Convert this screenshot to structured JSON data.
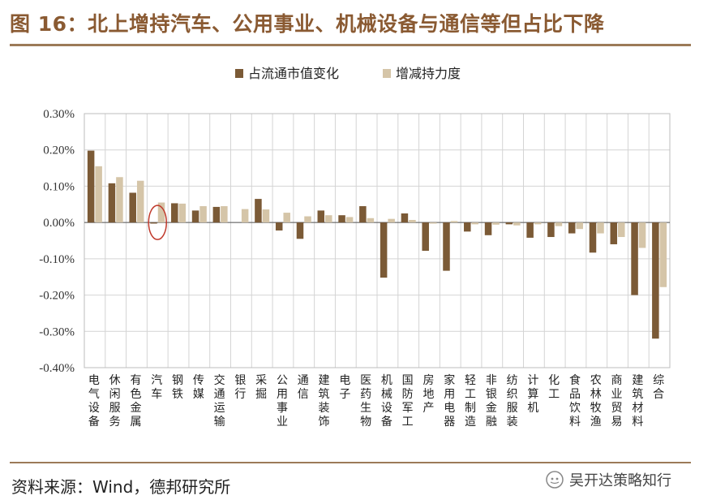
{
  "header": {
    "title": "图 16：北上增持汽车、公用事业、机械设备与通信等但占比下降"
  },
  "footer": {
    "source": "资料来源：Wind，德邦研究所",
    "watermark": "吴开达策略知行"
  },
  "colors": {
    "series1": "#7b5a36",
    "series2": "#d5c5a8",
    "grid": "#d4d4d4",
    "highlight": "#c0392b",
    "brand": "#8a5a32"
  },
  "chart_data": {
    "type": "bar",
    "categories": [
      "电气设备",
      "休闲服务",
      "有色金属",
      "汽车",
      "钢铁",
      "传媒",
      "交通运输",
      "银行",
      "采掘",
      "公用事业",
      "通信",
      "建筑装饰",
      "电子",
      "医药生物",
      "机械设备",
      "国防军工",
      "房地产",
      "家用电器",
      "轻工制造",
      "非银金融",
      "纺织服装",
      "计算机",
      "化工",
      "食品饮料",
      "农林牧渔",
      "商业贸易",
      "建筑材料",
      "综合"
    ],
    "series": [
      {
        "name": "占流通市值变化",
        "values": [
          0.198,
          0.108,
          0.082,
          -0.003,
          0.053,
          0.033,
          0.043,
          0.0,
          0.065,
          -0.022,
          -0.045,
          0.033,
          0.02,
          0.045,
          -0.152,
          0.025,
          -0.078,
          -0.133,
          -0.025,
          -0.035,
          -0.005,
          -0.042,
          -0.04,
          -0.03,
          -0.083,
          -0.06,
          -0.2,
          -0.32
        ]
      },
      {
        "name": "增减持力度",
        "values": [
          0.155,
          0.125,
          0.115,
          0.055,
          0.052,
          0.045,
          0.045,
          0.037,
          0.036,
          0.027,
          0.017,
          0.02,
          0.015,
          0.012,
          0.01,
          0.007,
          -0.003,
          0.004,
          -0.005,
          -0.006,
          -0.008,
          -0.005,
          -0.01,
          -0.018,
          -0.03,
          -0.04,
          -0.07,
          -0.178
        ]
      }
    ],
    "yticks": [
      "0.30%",
      "0.20%",
      "0.10%",
      "0.00%",
      "-0.10%",
      "-0.20%",
      "-0.30%",
      "-0.40%"
    ],
    "ylim": [
      -0.4,
      0.3
    ],
    "grid": true,
    "legend": "top-center",
    "highlight_category": "汽车"
  }
}
